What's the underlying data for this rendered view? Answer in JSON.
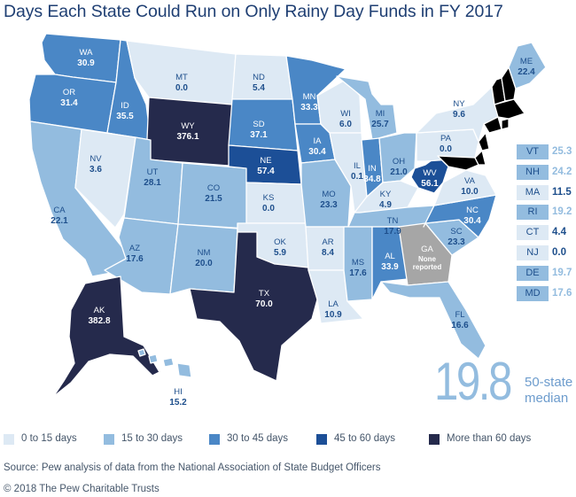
{
  "title": "Days Each State Could Run on Only Rainy Day Funds in FY 2017",
  "colors": {
    "b0": "#dde9f4",
    "b1": "#93bcdf",
    "b2": "#4a87c6",
    "b3": "#1c4f97",
    "b4": "#252a4c",
    "ga": "#a6a6a6",
    "label_dark": "#1e4f8c",
    "label_light": "#ffffff"
  },
  "legend": [
    {
      "label": "0 to 15 days",
      "color": "#dde9f4"
    },
    {
      "label": "15 to 30 days",
      "color": "#93bcdf"
    },
    {
      "label": "30 to 45 days",
      "color": "#4a87c6"
    },
    {
      "label": "45 to 60 days",
      "color": "#1c4f97"
    },
    {
      "label": "More than 60 days",
      "color": "#252a4c"
    }
  ],
  "states": {
    "WA": {
      "value": "30.9",
      "bin": 2
    },
    "OR": {
      "value": "31.4",
      "bin": 2
    },
    "CA": {
      "value": "22.1",
      "bin": 1
    },
    "ID": {
      "value": "35.5",
      "bin": 2
    },
    "NV": {
      "value": "3.6",
      "bin": 0
    },
    "MT": {
      "value": "0.0",
      "bin": 0
    },
    "WY": {
      "value": "376.1",
      "bin": 4
    },
    "UT": {
      "value": "28.1",
      "bin": 1
    },
    "CO": {
      "value": "21.5",
      "bin": 1
    },
    "AZ": {
      "value": "17.6",
      "bin": 1
    },
    "NM": {
      "value": "20.0",
      "bin": 1
    },
    "ND": {
      "value": "5.4",
      "bin": 0
    },
    "SD": {
      "value": "37.1",
      "bin": 2
    },
    "NE": {
      "value": "57.4",
      "bin": 3
    },
    "KS": {
      "value": "0.0",
      "bin": 0
    },
    "OK": {
      "value": "5.9",
      "bin": 0
    },
    "TX": {
      "value": "70.0",
      "bin": 4
    },
    "MN": {
      "value": "33.3",
      "bin": 2
    },
    "IA": {
      "value": "30.4",
      "bin": 2
    },
    "MO": {
      "value": "23.3",
      "bin": 1
    },
    "AR": {
      "value": "8.4",
      "bin": 0
    },
    "LA": {
      "value": "10.9",
      "bin": 0
    },
    "WI": {
      "value": "6.0",
      "bin": 0
    },
    "IL": {
      "value": "0.1",
      "bin": 0
    },
    "MI": {
      "value": "25.7",
      "bin": 1
    },
    "IN": {
      "value": "34.8",
      "bin": 2
    },
    "OH": {
      "value": "21.0",
      "bin": 1
    },
    "KY": {
      "value": "4.9",
      "bin": 0
    },
    "TN": {
      "value": "17.9",
      "bin": 1
    },
    "MS": {
      "value": "17.6",
      "bin": 1
    },
    "AL": {
      "value": "33.9",
      "bin": 2
    },
    "GA": {
      "value": "None reported",
      "bin": "ga"
    },
    "FL": {
      "value": "16.6",
      "bin": 1
    },
    "SC": {
      "value": "23.3",
      "bin": 1
    },
    "NC": {
      "value": "30.4",
      "bin": 2
    },
    "VA": {
      "value": "10.0",
      "bin": 0
    },
    "WV": {
      "value": "56.1",
      "bin": 3
    },
    "PA": {
      "value": "0.0",
      "bin": 0
    },
    "NY": {
      "value": "9.6",
      "bin": 0
    },
    "ME": {
      "value": "22.4",
      "bin": 1
    },
    "AK": {
      "value": "382.8",
      "bin": 4
    },
    "HI": {
      "value": "15.2",
      "bin": 1
    }
  },
  "small_states": [
    {
      "code": "VT",
      "value": "25.3",
      "bin": 1
    },
    {
      "code": "NH",
      "value": "24.2",
      "bin": 1
    },
    {
      "code": "MA",
      "value": "11.5",
      "bin": 0
    },
    {
      "code": "RI",
      "value": "19.2",
      "bin": 1
    },
    {
      "code": "CT",
      "value": "4.4",
      "bin": 0
    },
    {
      "code": "NJ",
      "value": "0.0",
      "bin": 0
    },
    {
      "code": "DE",
      "value": "19.7",
      "bin": 1
    },
    {
      "code": "MD",
      "value": "17.6",
      "bin": 1
    }
  ],
  "median": {
    "value": "19.8",
    "label_line1": "50-state",
    "label_line2": "median"
  },
  "source": "Source: Pew analysis of data from the National Association of State Budget Officers",
  "copyright": "© 2018 The Pew Charitable Trusts"
}
